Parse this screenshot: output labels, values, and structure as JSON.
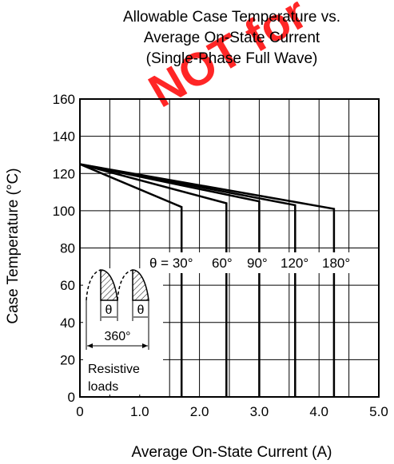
{
  "chart_data": {
    "type": "line",
    "title_lines": [
      "Allowable Case Temperature vs.",
      "Average On-State Current",
      "(Single-Phase Full Wave)"
    ],
    "watermark": "NOT for",
    "xlabel": "Average On-State Current  (A)",
    "ylabel": "Case Temperature  (°C)",
    "xlim": [
      0,
      5.0
    ],
    "ylim": [
      0,
      160
    ],
    "x_ticks": [
      "0",
      "1.0",
      "2.0",
      "3.0",
      "4.0",
      "5.0"
    ],
    "y_ticks": [
      "0",
      "20",
      "40",
      "60",
      "80",
      "100",
      "120",
      "140",
      "160"
    ],
    "grid": true,
    "series": [
      {
        "name": "30°",
        "points": [
          [
            0,
            125
          ],
          [
            1.7,
            102
          ],
          [
            1.7,
            0
          ]
        ]
      },
      {
        "name": "60°",
        "points": [
          [
            0,
            125
          ],
          [
            2.45,
            104
          ],
          [
            2.45,
            0
          ]
        ]
      },
      {
        "name": "90°",
        "points": [
          [
            0,
            125
          ],
          [
            3.0,
            105
          ],
          [
            3.0,
            0
          ]
        ]
      },
      {
        "name": "120°",
        "points": [
          [
            0,
            125
          ],
          [
            3.6,
            103
          ],
          [
            3.6,
            0
          ]
        ]
      },
      {
        "name": "180°",
        "points": [
          [
            0,
            125
          ],
          [
            4.25,
            101
          ],
          [
            4.25,
            0
          ]
        ]
      }
    ],
    "angle_label_prefix": "θ = ",
    "inset": {
      "theta1": "θ",
      "theta2": "θ",
      "period": "360°",
      "load_line1": "Resistive",
      "load_line2": "loads"
    }
  }
}
